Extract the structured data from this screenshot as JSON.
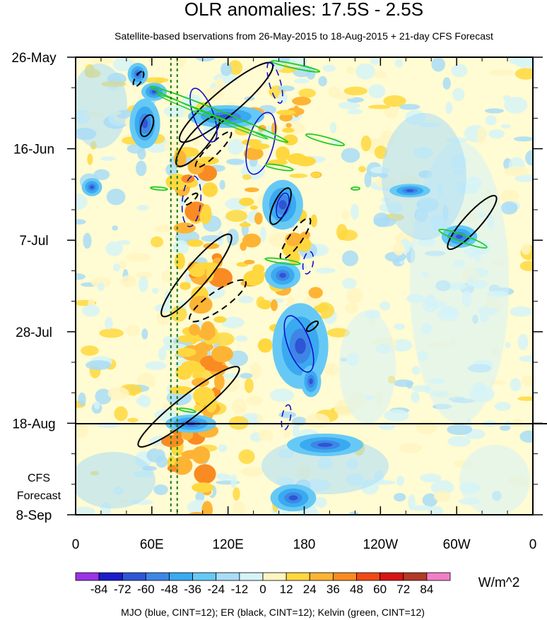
{
  "chart_data": {
    "type": "heatmap",
    "title": "OLR anomalies: 17.5S - 2.5S",
    "subtitle": "Satellite-based bservations from 26-May-2015 to 18-Aug-2015 + 21-day CFS Forecast",
    "x_ticks": [
      "0",
      "60E",
      "120E",
      "180",
      "120W",
      "60W",
      "0"
    ],
    "x_range_deg_east": [
      0,
      360
    ],
    "y_ticks": [
      "26-May",
      "16-Jun",
      "7-Jul",
      "28-Jul",
      "18-Aug",
      "8-Sep"
    ],
    "y_range": [
      "26-May",
      "8-Sep"
    ],
    "observation_end": "18-Aug",
    "forecast_label": [
      "CFS",
      "Forecast"
    ],
    "colorbar": {
      "units": "W/m^2",
      "labels": [
        "-84",
        "-72",
        "-60",
        "-48",
        "-36",
        "-24",
        "-12",
        "0",
        "12",
        "24",
        "36",
        "48",
        "60",
        "72",
        "84"
      ],
      "colors": [
        "#9a33e6",
        "#1c1ccc",
        "#2e55d5",
        "#3e86e6",
        "#3aaaf0",
        "#66c9f5",
        "#a9dcf7",
        "#d6f3f7",
        "#fff5c2",
        "#ffd840",
        "#fdb435",
        "#fa8b22",
        "#f24a16",
        "#d81414",
        "#b23a26",
        "#f27ec8"
      ]
    },
    "caption": "MJO (blue, CINT=12); ER (black, CINT=12); Kelvin (green, CINT=12)",
    "contour_colors": {
      "mjo": "#1010cc",
      "er": "#000000",
      "kelvin": "#22cc22"
    },
    "reference_lines_deg_east": [
      75,
      80
    ]
  }
}
